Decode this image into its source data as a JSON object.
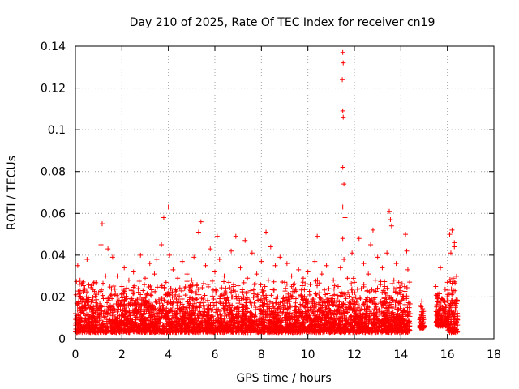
{
  "chart_data": {
    "type": "scatter",
    "title": "Day 210 of 2025, Rate Of TEC Index for receiver cn19",
    "xlabel": "GPS time / hours",
    "ylabel": "ROTI / TECUs",
    "xlim": [
      0,
      18
    ],
    "ylim": [
      0,
      0.14
    ],
    "xticks": [
      0,
      2,
      4,
      6,
      8,
      10,
      12,
      14,
      16,
      18
    ],
    "yticks": [
      0,
      0.02,
      0.04,
      0.06,
      0.08,
      0.1,
      0.12,
      0.14
    ],
    "xtick_labels": [
      "0",
      "2",
      "4",
      "6",
      "8",
      "10",
      "12",
      "14",
      "16",
      "18"
    ],
    "ytick_labels": [
      "0",
      "0.02",
      "0.04",
      "0.06",
      "0.08",
      "0.1",
      "0.12",
      "0.14"
    ],
    "grid": true,
    "marker": "+",
    "color": "#ff0000",
    "series": [
      {
        "name": "ROTI",
        "points": [
          [
            0.0,
            0.012
          ],
          [
            0.05,
            0.008
          ],
          [
            0.1,
            0.035
          ],
          [
            0.15,
            0.02
          ],
          [
            0.2,
            0.028
          ],
          [
            0.3,
            0.015
          ],
          [
            0.4,
            0.024
          ],
          [
            0.5,
            0.038
          ],
          [
            0.6,
            0.01
          ],
          [
            0.7,
            0.018
          ],
          [
            0.8,
            0.027
          ],
          [
            0.9,
            0.014
          ],
          [
            1.0,
            0.022
          ],
          [
            1.1,
            0.045
          ],
          [
            1.15,
            0.055
          ],
          [
            1.2,
            0.012
          ],
          [
            1.3,
            0.03
          ],
          [
            1.4,
            0.043
          ],
          [
            1.5,
            0.016
          ],
          [
            1.6,
            0.039
          ],
          [
            1.7,
            0.021
          ],
          [
            1.8,
            0.03
          ],
          [
            1.9,
            0.011
          ],
          [
            2.0,
            0.025
          ],
          [
            2.1,
            0.034
          ],
          [
            2.2,
            0.013
          ],
          [
            2.3,
            0.028
          ],
          [
            2.4,
            0.019
          ],
          [
            2.5,
            0.032
          ],
          [
            2.6,
            0.009
          ],
          [
            2.7,
            0.024
          ],
          [
            2.8,
            0.04
          ],
          [
            2.9,
            0.017
          ],
          [
            3.0,
            0.029
          ],
          [
            3.1,
            0.014
          ],
          [
            3.2,
            0.036
          ],
          [
            3.3,
            0.022
          ],
          [
            3.4,
            0.031
          ],
          [
            3.5,
            0.038
          ],
          [
            3.6,
            0.012
          ],
          [
            3.7,
            0.045
          ],
          [
            3.8,
            0.058
          ],
          [
            3.9,
            0.027
          ],
          [
            4.0,
            0.063
          ],
          [
            4.05,
            0.04
          ],
          [
            4.1,
            0.018
          ],
          [
            4.2,
            0.033
          ],
          [
            4.3,
            0.021
          ],
          [
            4.4,
            0.029
          ],
          [
            4.5,
            0.012
          ],
          [
            4.6,
            0.037
          ],
          [
            4.7,
            0.024
          ],
          [
            4.8,
            0.031
          ],
          [
            4.9,
            0.016
          ],
          [
            5.0,
            0.028
          ],
          [
            5.1,
            0.039
          ],
          [
            5.2,
            0.022
          ],
          [
            5.3,
            0.051
          ],
          [
            5.4,
            0.056
          ],
          [
            5.5,
            0.019
          ],
          [
            5.6,
            0.035
          ],
          [
            5.7,
            0.026
          ],
          [
            5.8,
            0.043
          ],
          [
            5.9,
            0.014
          ],
          [
            6.0,
            0.032
          ],
          [
            6.1,
            0.049
          ],
          [
            6.2,
            0.038
          ],
          [
            6.3,
            0.021
          ],
          [
            6.4,
            0.03
          ],
          [
            6.5,
            0.017
          ],
          [
            6.6,
            0.027
          ],
          [
            6.7,
            0.042
          ],
          [
            6.8,
            0.025
          ],
          [
            6.9,
            0.049
          ],
          [
            7.0,
            0.013
          ],
          [
            7.1,
            0.034
          ],
          [
            7.2,
            0.022
          ],
          [
            7.3,
            0.047
          ],
          [
            7.4,
            0.029
          ],
          [
            7.5,
            0.018
          ],
          [
            7.6,
            0.041
          ],
          [
            7.7,
            0.026
          ],
          [
            7.8,
            0.031
          ],
          [
            7.9,
            0.014
          ],
          [
            8.0,
            0.037
          ],
          [
            8.1,
            0.023
          ],
          [
            8.2,
            0.051
          ],
          [
            8.3,
            0.028
          ],
          [
            8.4,
            0.044
          ],
          [
            8.5,
            0.017
          ],
          [
            8.6,
            0.035
          ],
          [
            8.7,
            0.02
          ],
          [
            8.8,
            0.039
          ],
          [
            8.9,
            0.012
          ],
          [
            9.0,
            0.027
          ],
          [
            9.1,
            0.036
          ],
          [
            9.2,
            0.019
          ],
          [
            9.3,
            0.03
          ],
          [
            9.4,
            0.024
          ],
          [
            9.5,
            0.011
          ],
          [
            9.6,
            0.033
          ],
          [
            9.7,
            0.021
          ],
          [
            9.8,
            0.029
          ],
          [
            9.9,
            0.015
          ],
          [
            10.0,
            0.032
          ],
          [
            10.1,
            0.026
          ],
          [
            10.2,
            0.018
          ],
          [
            10.3,
            0.037
          ],
          [
            10.4,
            0.049
          ],
          [
            10.5,
            0.022
          ],
          [
            10.6,
            0.031
          ],
          [
            10.7,
            0.013
          ],
          [
            10.8,
            0.035
          ],
          [
            10.9,
            0.024
          ],
          [
            11.0,
            0.019
          ],
          [
            11.1,
            0.028
          ],
          [
            11.2,
            0.016
          ],
          [
            11.3,
            0.025
          ],
          [
            11.4,
            0.034
          ],
          [
            11.5,
            0.137
          ],
          [
            11.52,
            0.132
          ],
          [
            11.48,
            0.124
          ],
          [
            11.5,
            0.109
          ],
          [
            11.52,
            0.106
          ],
          [
            11.5,
            0.082
          ],
          [
            11.55,
            0.074
          ],
          [
            11.5,
            0.063
          ],
          [
            11.6,
            0.058
          ],
          [
            11.5,
            0.048
          ],
          [
            11.55,
            0.038
          ],
          [
            11.6,
            0.021
          ],
          [
            11.7,
            0.029
          ],
          [
            11.8,
            0.014
          ],
          [
            11.9,
            0.041
          ],
          [
            12.0,
            0.027
          ],
          [
            12.1,
            0.018
          ],
          [
            12.2,
            0.048
          ],
          [
            12.3,
            0.024
          ],
          [
            12.4,
            0.036
          ],
          [
            12.5,
            0.012
          ],
          [
            12.6,
            0.031
          ],
          [
            12.7,
            0.045
          ],
          [
            12.8,
            0.052
          ],
          [
            12.9,
            0.028
          ],
          [
            13.0,
            0.039
          ],
          [
            13.1,
            0.017
          ],
          [
            13.2,
            0.034
          ],
          [
            13.3,
            0.025
          ],
          [
            13.4,
            0.041
          ],
          [
            13.5,
            0.061
          ],
          [
            13.55,
            0.057
          ],
          [
            13.6,
            0.054
          ],
          [
            13.7,
            0.028
          ],
          [
            13.8,
            0.036
          ],
          [
            13.9,
            0.014
          ],
          [
            14.0,
            0.023
          ],
          [
            14.1,
            0.019
          ],
          [
            14.2,
            0.05
          ],
          [
            14.25,
            0.042
          ],
          [
            14.3,
            0.033
          ],
          [
            14.4,
            0.012
          ],
          [
            14.9,
            0.018
          ],
          [
            14.95,
            0.012
          ],
          [
            15.0,
            0.006
          ],
          [
            15.5,
            0.025
          ],
          [
            15.6,
            0.011
          ],
          [
            15.7,
            0.034
          ],
          [
            15.8,
            0.019
          ],
          [
            15.9,
            0.013
          ],
          [
            16.0,
            0.027
          ],
          [
            16.1,
            0.05
          ],
          [
            16.15,
            0.041
          ],
          [
            16.2,
            0.052
          ],
          [
            16.25,
            0.029
          ],
          [
            16.3,
            0.044
          ],
          [
            16.35,
            0.016
          ],
          [
            16.4,
            0.008
          ],
          [
            16.3,
            0.046
          ],
          [
            16.2,
            0.022
          ],
          [
            16.25,
            0.012
          ]
        ]
      }
    ],
    "noise_band": {
      "note": "dense band of ROTI values between these data-unit bounds, sampled per hour interval",
      "segments": [
        {
          "x": [
            0.0,
            14.4
          ],
          "y_low": 0.003,
          "y_high": 0.028
        },
        {
          "x": [
            14.8,
            15.0
          ],
          "y_low": 0.005,
          "y_high": 0.016
        },
        {
          "x": [
            15.5,
            16.0
          ],
          "y_low": 0.006,
          "y_high": 0.024
        },
        {
          "x": [
            16.0,
            16.45
          ],
          "y_low": 0.003,
          "y_high": 0.036
        }
      ]
    }
  }
}
